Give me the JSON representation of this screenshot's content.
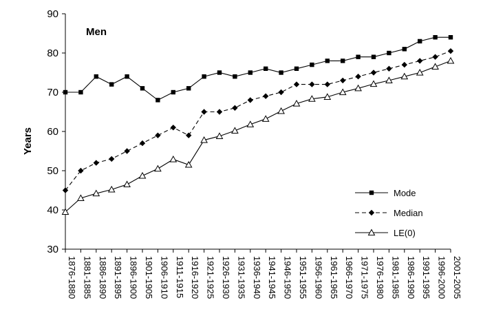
{
  "chart_data": {
    "type": "line",
    "title": "Men",
    "xlabel": "",
    "ylabel": "Years",
    "ylim": [
      30,
      90
    ],
    "yticks": [
      30,
      40,
      50,
      60,
      70,
      80,
      90
    ],
    "grid": false,
    "legend_position": "right",
    "categories": [
      "1876-1880",
      "1881-1885",
      "1886-1890",
      "1891-1895",
      "1896-1900",
      "1901-1905",
      "1906-1910",
      "1911-1915",
      "1916-1920",
      "1921-1925",
      "1926-1930",
      "1931-1935",
      "1936-1940",
      "1941-1945",
      "1946-1950",
      "1951-1955",
      "1956-1960",
      "1961-1965",
      "1966-1970",
      "1971-1975",
      "1976-1980",
      "1981-1985",
      "1986-1990",
      "1991-1995",
      "1996-2000",
      "2001-2005"
    ],
    "series": [
      {
        "name": "Mode",
        "marker": "square",
        "dash": "solid",
        "values": [
          70,
          70,
          74,
          72,
          74,
          71,
          68,
          70,
          71,
          74,
          75,
          74,
          75,
          76,
          75,
          76,
          77,
          78,
          78,
          79,
          79,
          80,
          81,
          83,
          84,
          84
        ]
      },
      {
        "name": "Median",
        "marker": "diamond",
        "dash": "dashed",
        "values": [
          45,
          50,
          52,
          53,
          55,
          57,
          59,
          61,
          59,
          65,
          65,
          66,
          68,
          69,
          70,
          72,
          72,
          72,
          73,
          74,
          75,
          76,
          77,
          78,
          79,
          80.5
        ]
      },
      {
        "name": "LE(0)",
        "marker": "triangle",
        "dash": "solid",
        "values": [
          39.5,
          43,
          44.2,
          45.2,
          46.5,
          48.7,
          50.5,
          52.9,
          51.5,
          57.8,
          58.8,
          60.2,
          61.8,
          63.2,
          65.2,
          67.1,
          68.3,
          68.8,
          70,
          71,
          72.1,
          73,
          74,
          75,
          76.5,
          78
        ]
      }
    ]
  }
}
